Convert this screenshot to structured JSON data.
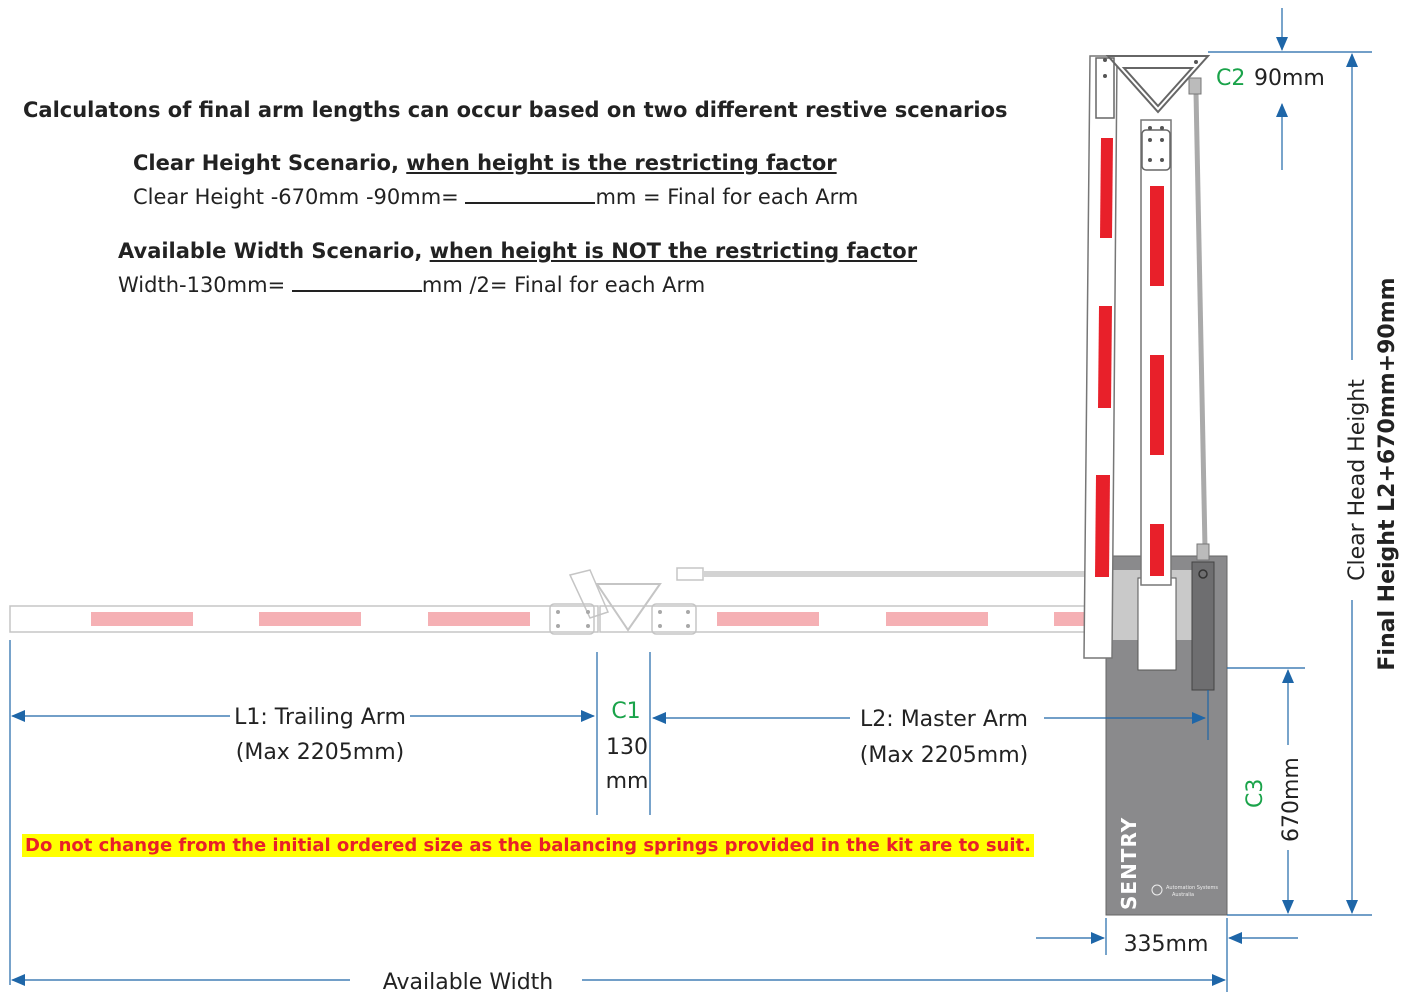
{
  "heading": "Calculatons of final arm lengths can occur based on two different restive scenarios",
  "clear_height": {
    "title_prefix": "Clear Height Scenario, ",
    "title_underlined": "when height is the restricting factor",
    "formula_left": "Clear Height -670mm -90mm=",
    "formula_right": "mm = Final for each Arm"
  },
  "available_width": {
    "title_prefix": "Available Width Scenario, ",
    "title_underlined": "when height is NOT the restricting factor",
    "formula_left": "Width-130mm=",
    "formula_right": "mm /2= Final for each Arm"
  },
  "warning": "Do not change from the initial ordered size as the balancing springs provided in the kit are to suit.",
  "dims": {
    "l1_title": "L1: Trailing Arm",
    "l1_max": "(Max 2205mm)",
    "c1_label": "C1",
    "c1_val1": "130",
    "c1_val2": "mm",
    "l2_title": "L2: Master Arm",
    "l2_max": "(Max 2205mm)",
    "c2_label": "C2",
    "c2_val": "90mm",
    "c3_label": "C3",
    "c3_val": "670mm",
    "width_335": "335mm",
    "available_width": "Available Width",
    "clear_head_height": "Clear Head Height",
    "final_height": "Final Height L2+670mm+90mm"
  },
  "cabinet": {
    "brand": "SENTRY",
    "sub1": "Automation Systems",
    "sub2": "Australia"
  },
  "colors": {
    "dimension_blue": "#1e66a8",
    "stripe_red": "#e8202a",
    "stripe_pale": "#f4a3a7",
    "cabinet_gray": "#8a8a8c",
    "label_green": "#1aa34a",
    "warning_bg": "#ffff00",
    "warning_text": "#e8202a"
  }
}
